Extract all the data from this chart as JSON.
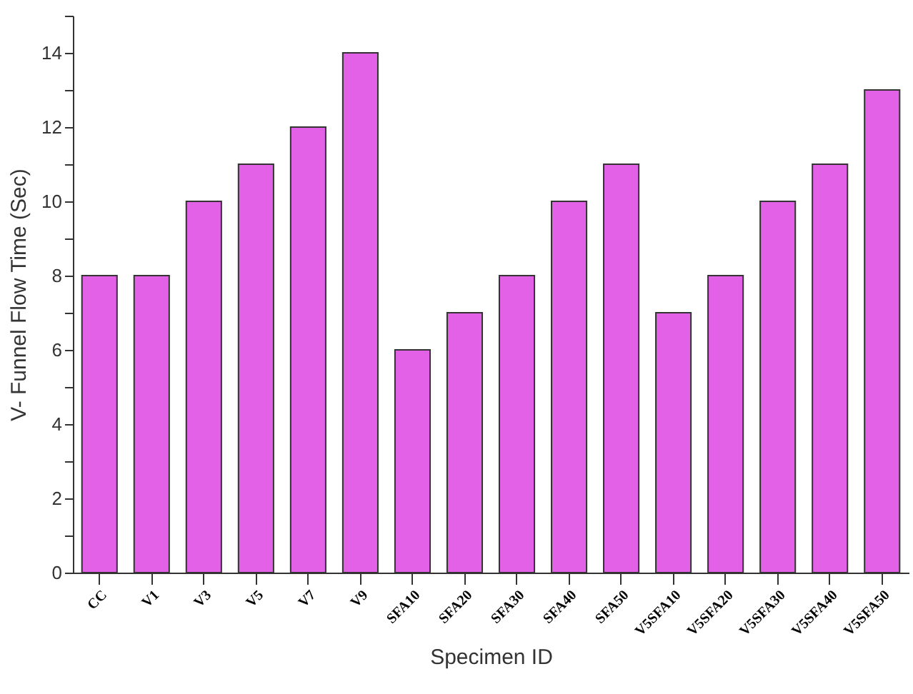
{
  "chart_data": {
    "type": "bar",
    "xlabel": "Specimen ID",
    "ylabel": "V- Funnel Flow Time (Sec)",
    "categories": [
      "CC",
      "V1",
      "V3",
      "V5",
      "V7",
      "V9",
      "SFA10",
      "SFA20",
      "SFA30",
      "SFA40",
      "SFA50",
      "V5SFA10",
      "V5SFA20",
      "V5SFA30",
      "V5SFA40",
      "V5SFA50"
    ],
    "values": [
      8,
      8,
      10,
      11,
      12,
      14,
      6,
      7,
      8,
      10,
      11,
      7,
      8,
      10,
      11,
      13
    ],
    "color": "#e261e6",
    "ylim": [
      0,
      15
    ],
    "yticks": [
      0,
      {
        "value": 1,
        "label": null
      },
      2,
      {
        "value": 3,
        "label": null
      },
      4,
      {
        "value": 5,
        "label": null
      },
      6,
      {
        "value": 7,
        "label": null
      },
      8,
      {
        "value": 9,
        "label": null
      },
      10,
      {
        "value": 11,
        "label": null
      },
      12,
      {
        "value": 13,
        "label": null
      },
      14,
      {
        "value": 15,
        "label": null
      }
    ],
    "grid": false
  }
}
